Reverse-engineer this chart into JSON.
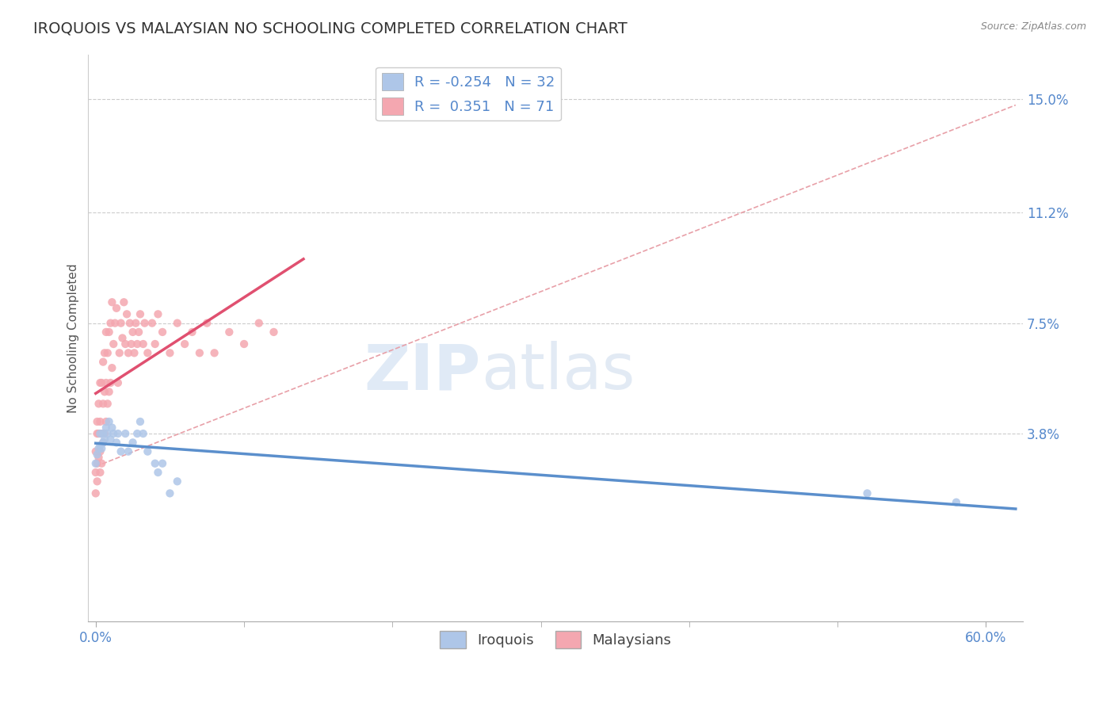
{
  "title": "IROQUOIS VS MALAYSIAN NO SCHOOLING COMPLETED CORRELATION CHART",
  "source": "Source: ZipAtlas.com",
  "xlabel_ticks_show": [
    "0.0%",
    "60.0%"
  ],
  "xlabel_ticks_pos": [
    0.0,
    0.6
  ],
  "xtick_minor_pos": [
    0.1,
    0.2,
    0.3,
    0.4,
    0.5
  ],
  "ytick_labels": [
    "3.8%",
    "7.5%",
    "11.2%",
    "15.0%"
  ],
  "ytick_values": [
    0.038,
    0.075,
    0.112,
    0.15
  ],
  "xlim": [
    -0.005,
    0.625
  ],
  "ylim": [
    -0.025,
    0.165
  ],
  "iroquois_R": -0.254,
  "iroquois_N": 32,
  "malaysian_R": 0.351,
  "malaysian_N": 71,
  "iroquois_color": "#aec6e8",
  "malaysian_color": "#f4a7b0",
  "iroquois_line_color": "#5b8fcc",
  "malaysian_line_color": "#e05070",
  "dashed_line_color": "#e8a0a8",
  "legend_label_iroquois": "Iroquois",
  "legend_label_malaysian": "Malaysians",
  "ylabel": "No Schooling Completed",
  "watermark_zip": "ZIP",
  "watermark_atlas": "atlas",
  "background_color": "#ffffff",
  "grid_color": "#cccccc",
  "title_color": "#333333",
  "axis_label_color": "#5588cc",
  "iroquois_x": [
    0.0,
    0.001,
    0.002,
    0.003,
    0.003,
    0.004,
    0.005,
    0.005,
    0.006,
    0.007,
    0.008,
    0.009,
    0.01,
    0.011,
    0.012,
    0.014,
    0.015,
    0.017,
    0.02,
    0.022,
    0.025,
    0.028,
    0.03,
    0.032,
    0.035,
    0.04,
    0.042,
    0.045,
    0.05,
    0.055,
    0.52,
    0.58
  ],
  "iroquois_y": [
    0.028,
    0.031,
    0.033,
    0.034,
    0.038,
    0.033,
    0.035,
    0.038,
    0.036,
    0.04,
    0.038,
    0.042,
    0.036,
    0.04,
    0.038,
    0.035,
    0.038,
    0.032,
    0.038,
    0.032,
    0.035,
    0.038,
    0.042,
    0.038,
    0.032,
    0.028,
    0.025,
    0.028,
    0.018,
    0.022,
    0.018,
    0.015
  ],
  "malaysian_x": [
    0.0,
    0.0,
    0.0,
    0.001,
    0.001,
    0.001,
    0.001,
    0.002,
    0.002,
    0.002,
    0.003,
    0.003,
    0.003,
    0.003,
    0.004,
    0.004,
    0.004,
    0.005,
    0.005,
    0.005,
    0.006,
    0.006,
    0.006,
    0.007,
    0.007,
    0.007,
    0.008,
    0.008,
    0.009,
    0.009,
    0.01,
    0.01,
    0.011,
    0.011,
    0.012,
    0.013,
    0.014,
    0.015,
    0.016,
    0.017,
    0.018,
    0.019,
    0.02,
    0.021,
    0.022,
    0.023,
    0.024,
    0.025,
    0.026,
    0.027,
    0.028,
    0.029,
    0.03,
    0.032,
    0.033,
    0.035,
    0.038,
    0.04,
    0.042,
    0.045,
    0.05,
    0.055,
    0.06,
    0.065,
    0.07,
    0.075,
    0.08,
    0.09,
    0.1,
    0.11,
    0.12
  ],
  "malaysian_y": [
    0.018,
    0.025,
    0.032,
    0.022,
    0.028,
    0.038,
    0.042,
    0.03,
    0.038,
    0.048,
    0.025,
    0.032,
    0.042,
    0.055,
    0.028,
    0.038,
    0.055,
    0.035,
    0.048,
    0.062,
    0.038,
    0.052,
    0.065,
    0.042,
    0.055,
    0.072,
    0.048,
    0.065,
    0.052,
    0.072,
    0.055,
    0.075,
    0.06,
    0.082,
    0.068,
    0.075,
    0.08,
    0.055,
    0.065,
    0.075,
    0.07,
    0.082,
    0.068,
    0.078,
    0.065,
    0.075,
    0.068,
    0.072,
    0.065,
    0.075,
    0.068,
    0.072,
    0.078,
    0.068,
    0.075,
    0.065,
    0.075,
    0.068,
    0.078,
    0.072,
    0.065,
    0.075,
    0.068,
    0.072,
    0.065,
    0.075,
    0.065,
    0.072,
    0.068,
    0.075,
    0.072
  ]
}
